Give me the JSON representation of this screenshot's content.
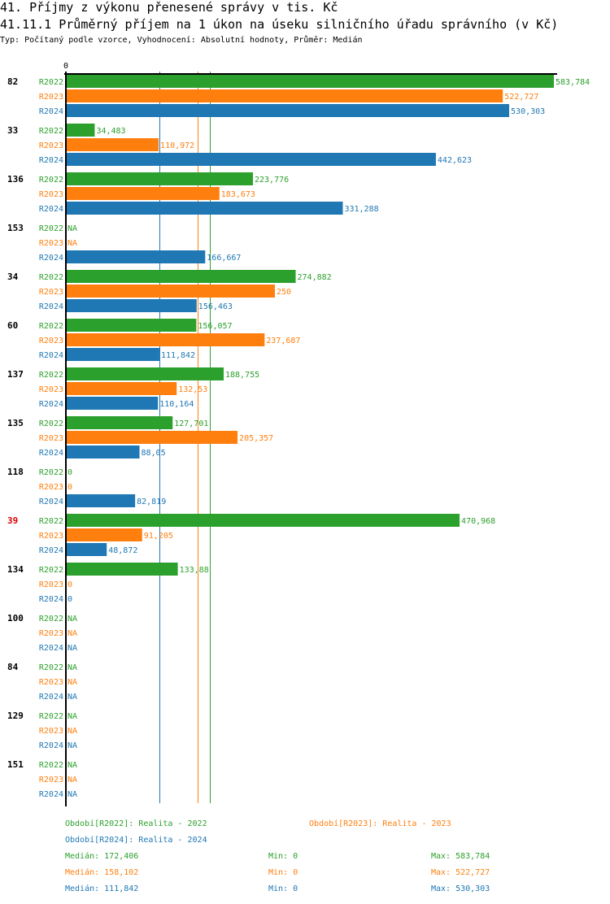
{
  "header": {
    "title": "41. Příjmy z výkonu přenesené správy v tis. Kč",
    "subtitle": "41.11.1 Průměrný příjem na 1 úkon na úseku silničního úřadu správního (v Kč)",
    "meta": "Typ: Počítaný podle vzorce, Vyhodnocení: Absolutní hodnoty, Průměr: Medián"
  },
  "chart_data": {
    "type": "bar",
    "orientation": "horizontal",
    "title": "41.11.1 Průměrný příjem na 1 úkon na úseku silničního úřadu správního (v Kč)",
    "xlabel": "",
    "ylabel": "",
    "x_tick_labels": [
      "0"
    ],
    "xlim": [
      0,
      583784
    ],
    "grid": false,
    "series_names": [
      "R2022",
      "R2023",
      "R2024"
    ],
    "colors": {
      "R2022": "#2ca02c",
      "R2023": "#ff7f0e",
      "R2024": "#1f77b4"
    },
    "highlight_color": "#dd0000",
    "categories": [
      {
        "label": "82",
        "highlight": false,
        "values": [
          583784,
          522727,
          530303
        ],
        "labels": [
          "583,784",
          "522,727",
          "530,303"
        ]
      },
      {
        "label": "33",
        "highlight": false,
        "values": [
          34483,
          110972,
          442623
        ],
        "labels": [
          "34,483",
          "110,972",
          "442,623"
        ]
      },
      {
        "label": "136",
        "highlight": false,
        "values": [
          223776,
          183673,
          331288
        ],
        "labels": [
          "223,776",
          "183,673",
          "331,288"
        ]
      },
      {
        "label": "153",
        "highlight": false,
        "values": [
          null,
          null,
          166667
        ],
        "labels": [
          "NA",
          "NA",
          "166,667"
        ]
      },
      {
        "label": "34",
        "highlight": false,
        "values": [
          274882,
          250,
          156463
        ],
        "labels": [
          "274,882",
          "250",
          "156,463"
        ]
      },
      {
        "label": "60",
        "highlight": false,
        "values": [
          156057,
          237687,
          111842
        ],
        "labels": [
          "156,057",
          "237,687",
          "111,842"
        ]
      },
      {
        "label": "137",
        "highlight": false,
        "values": [
          188755,
          132.53,
          110164
        ],
        "labels": [
          "188,755",
          "132,53",
          "110,164"
        ]
      },
      {
        "label": "135",
        "highlight": false,
        "values": [
          127701,
          205357,
          88.05
        ],
        "labels": [
          "127,701",
          "205,357",
          "88,05"
        ]
      },
      {
        "label": "118",
        "highlight": false,
        "values": [
          0,
          0,
          82819
        ],
        "labels": [
          "0",
          "0",
          "82,819"
        ]
      },
      {
        "label": "39",
        "highlight": true,
        "values": [
          470968,
          91205,
          48872
        ],
        "labels": [
          "470,968",
          "91,205",
          "48,872"
        ]
      },
      {
        "label": "134",
        "highlight": false,
        "values": [
          133.88,
          0,
          0
        ],
        "labels": [
          "133,88",
          "0",
          "0"
        ]
      },
      {
        "label": "100",
        "highlight": false,
        "values": [
          null,
          null,
          null
        ],
        "labels": [
          "NA",
          "NA",
          "NA"
        ]
      },
      {
        "label": "84",
        "highlight": false,
        "values": [
          null,
          null,
          null
        ],
        "labels": [
          "NA",
          "NA",
          "NA"
        ]
      },
      {
        "label": "129",
        "highlight": false,
        "values": [
          null,
          null,
          null
        ],
        "labels": [
          "NA",
          "NA",
          "NA"
        ]
      },
      {
        "label": "151",
        "highlight": false,
        "values": [
          null,
          null,
          null
        ],
        "labels": [
          "NA",
          "NA",
          "NA"
        ]
      }
    ],
    "bar_scale_values": {
      "note": "bars drawn with these numeric magnitudes",
      "values": [
        [
          583784,
          522727,
          530303
        ],
        [
          34483,
          110972,
          442623
        ],
        [
          223776,
          183673,
          331288
        ],
        [
          null,
          null,
          166667
        ],
        [
          274882,
          250000,
          156463
        ],
        [
          156057,
          237687,
          111842
        ],
        [
          188755,
          132530,
          110164
        ],
        [
          127701,
          205357,
          88050
        ],
        [
          0,
          0,
          82819
        ],
        [
          470968,
          91205,
          48872
        ],
        [
          133880,
          0,
          0
        ],
        [
          null,
          null,
          null
        ],
        [
          null,
          null,
          null
        ],
        [
          null,
          null,
          null
        ],
        [
          null,
          null,
          null
        ]
      ]
    },
    "median_lines": [
      {
        "series": "R2024",
        "value": 111842
      },
      {
        "series": "R2023",
        "value": 158102
      },
      {
        "series": "R2022",
        "value": 172406
      }
    ],
    "legend": [
      {
        "series": "R2022",
        "text": "Období[R2022]: Realita - 2022"
      },
      {
        "series": "R2023",
        "text": "Období[R2023]: Realita - 2023"
      },
      {
        "series": "R2024",
        "text": "Období[R2024]: Realita - 2024"
      }
    ],
    "legend_position": "bottom",
    "stats": [
      {
        "series": "R2022",
        "median": "Medián: 172,406",
        "min": "Min: 0",
        "max": "Max: 583,784"
      },
      {
        "series": "R2023",
        "median": "Medián: 158,102",
        "min": "Min: 0",
        "max": "Max: 522,727"
      },
      {
        "series": "R2024",
        "median": "Medián: 111,842",
        "min": "Min: 0",
        "max": "Max: 530,303"
      }
    ]
  }
}
